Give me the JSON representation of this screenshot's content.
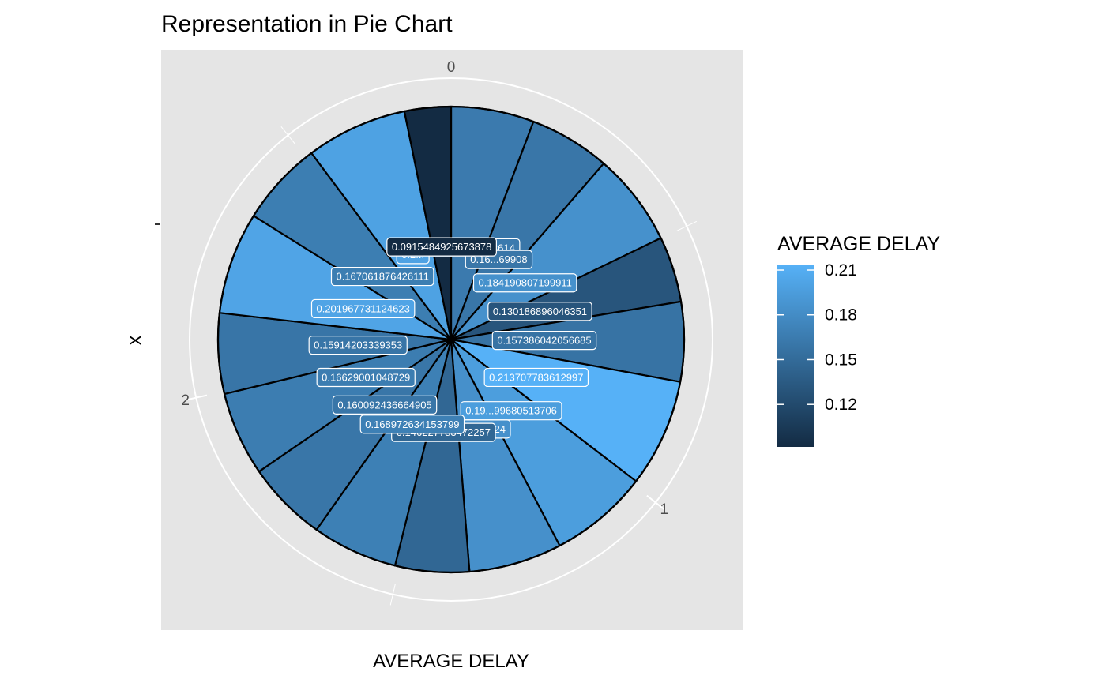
{
  "chart_data": {
    "type": "pie",
    "title": "Representation in Pie Chart",
    "xlabel": "AVERAGE DELAY",
    "ylabel": "x",
    "theta_ticks": [
      "0",
      "1",
      "2"
    ],
    "theta_range": [
      0,
      2.8
    ],
    "y_tick_label": "",
    "values": [
      0.163948871623614,
      0.16,
      0.184190807199911,
      0.130186896046351,
      0.157386042056685,
      0.213707783612997,
      0.196,
      0.184,
      0.146227783472257,
      0.168972634153799,
      0.160092436664905,
      0.16629001048729,
      0.15914203339353,
      0.201967731124623,
      0.167061876426111,
      0.2,
      0.0915484925673878
    ],
    "labels": [
      {
        "text": "0.163948871623614"
      },
      {
        "text": "0.16...69908"
      },
      {
        "text": "0.184190807199911"
      },
      {
        "text": "0.130186896046351"
      },
      {
        "text": "0.157386042056685"
      },
      {
        "text": "0.213707783612997"
      },
      {
        "text": "0.19...99680513706"
      },
      {
        "text": "0.18...40224"
      },
      {
        "text": "0.146227783472257"
      },
      {
        "text": "0.168972634153799"
      },
      {
        "text": "0.160092436664905"
      },
      {
        "text": "0.16629001048729"
      },
      {
        "text": "0.15914203339353"
      },
      {
        "text": "0.201967731124623"
      },
      {
        "text": "0.167061876426111"
      },
      {
        "text": "0.2..."
      },
      {
        "text": "0.0915484925673878"
      }
    ],
    "legend": {
      "title": "AVERAGE DELAY",
      "ticks": [
        "0.21",
        "0.18",
        "0.15",
        "0.12"
      ],
      "position": "right",
      "color_low": "#132B43",
      "color_high": "#56B1F7"
    },
    "panel_background": "#e5e5e5",
    "grid": true
  }
}
